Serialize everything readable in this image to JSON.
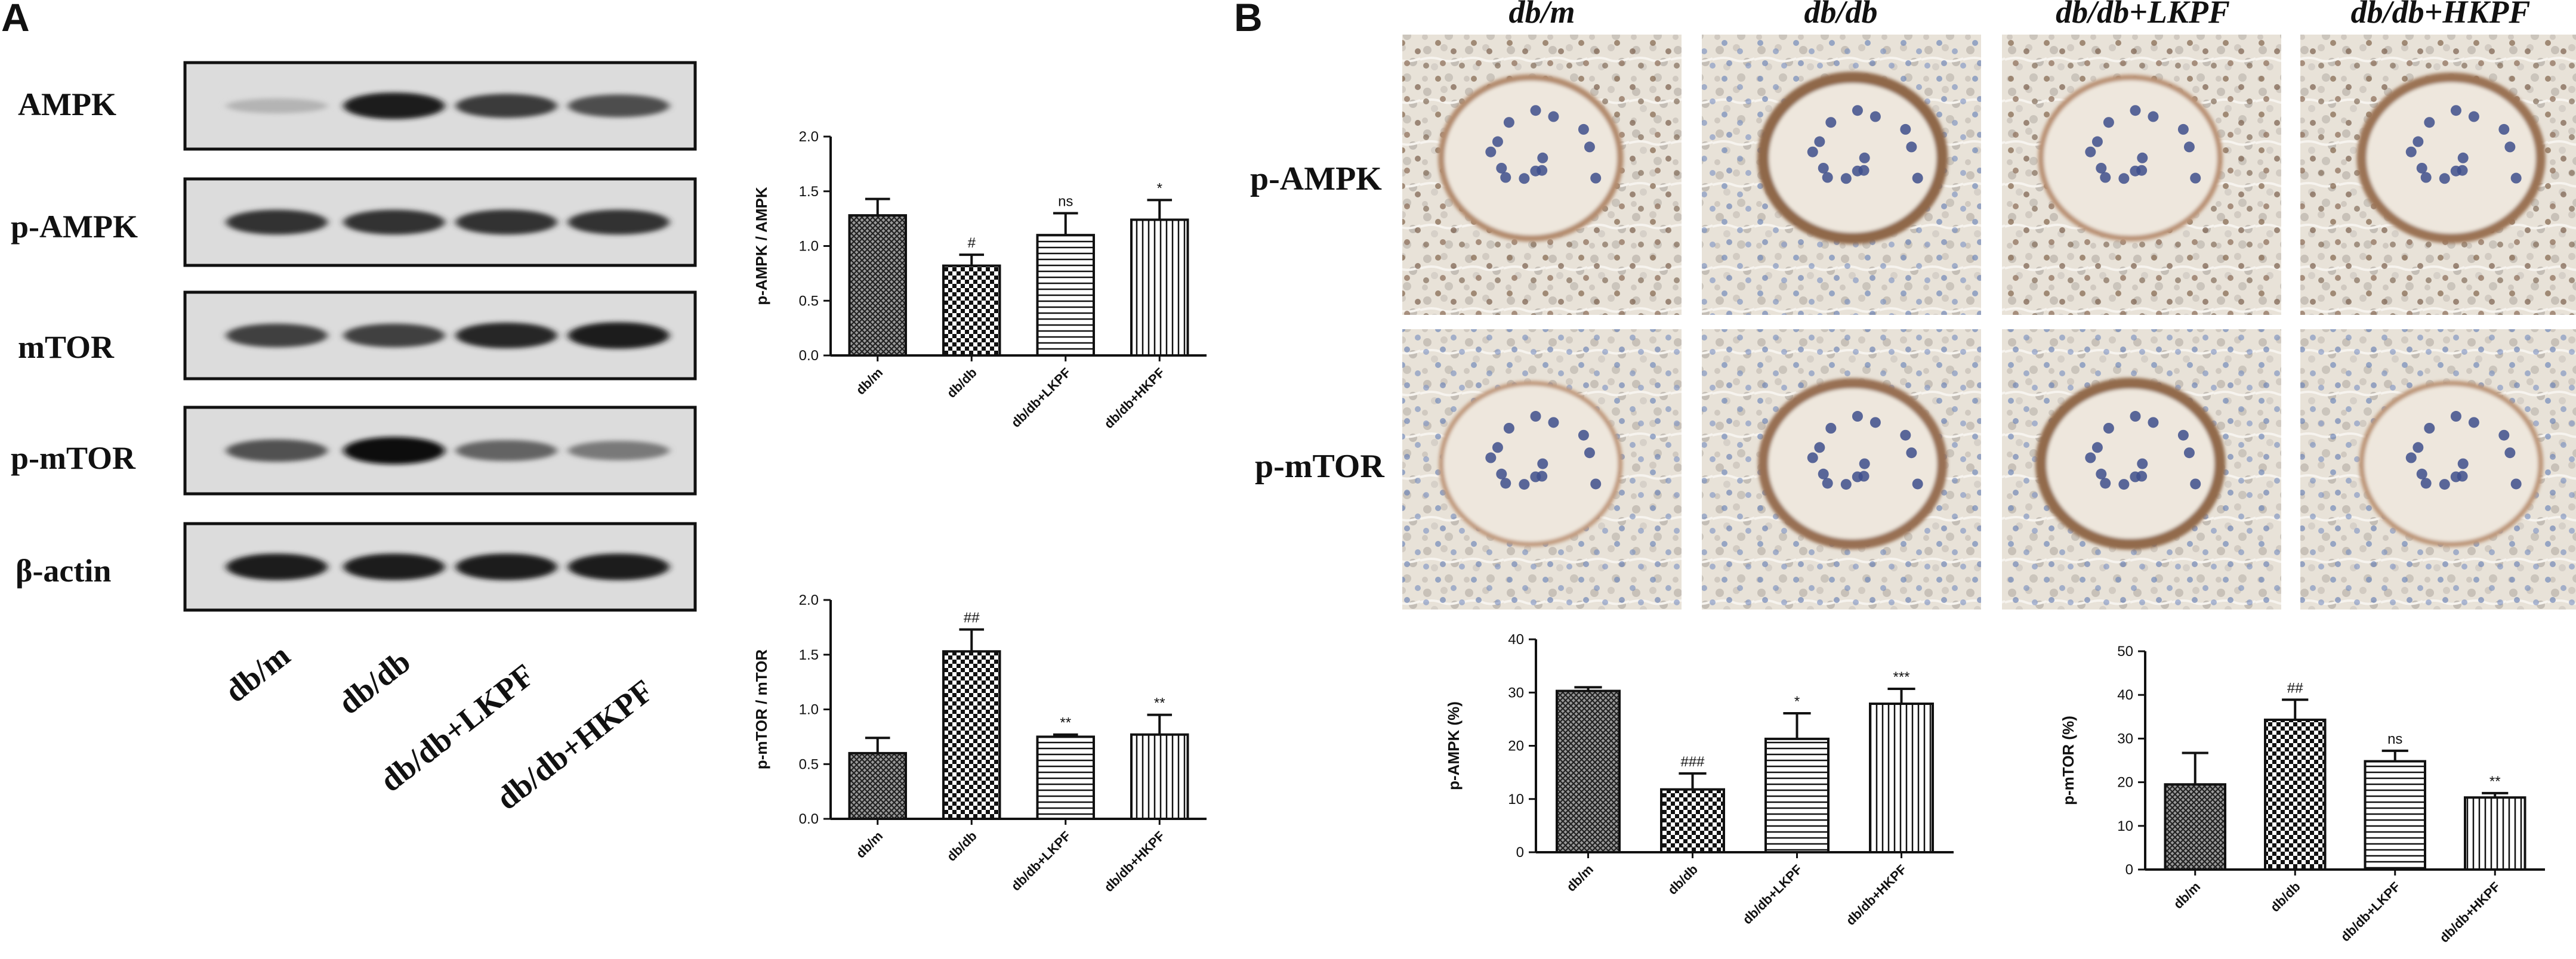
{
  "panels": [
    {
      "letter": "A"
    },
    {
      "letter": "B"
    }
  ],
  "blot": {
    "rows": [
      {
        "label": "AMPK"
      },
      {
        "label": "p-AMPK"
      },
      {
        "label": "mTOR"
      },
      {
        "label": "p-mTOR"
      },
      {
        "label": "β-actin"
      }
    ],
    "lanes": [
      "db/m",
      "db/db",
      "db/db+LKPF",
      "db/db+HKPF"
    ],
    "band_intensity": [
      [
        0.25,
        0.95,
        0.8,
        0.72
      ],
      [
        0.85,
        0.85,
        0.85,
        0.85
      ],
      [
        0.78,
        0.78,
        0.9,
        0.95
      ],
      [
        0.7,
        1.0,
        0.62,
        0.52
      ],
      [
        0.95,
        0.95,
        0.95,
        0.95
      ]
    ]
  },
  "ihc": {
    "groups": [
      "db/m",
      "db/db",
      "db/db+LKPF",
      "db/db+HKPF"
    ],
    "rows": [
      "p-AMPK",
      "p-mTOR"
    ]
  },
  "chart_data": [
    {
      "type": "bar",
      "categories": [
        "db/m",
        "db/db",
        "db/db+LKPF",
        "db/db+HKPF"
      ],
      "values": [
        1.28,
        0.82,
        1.1,
        1.24
      ],
      "errors": [
        0.15,
        0.1,
        0.2,
        0.18
      ],
      "annotations": [
        "",
        "#",
        "ns",
        "*"
      ],
      "ylabel": "p-AMPK / AMPK",
      "xlabel": "",
      "title": "",
      "ylim": [
        0,
        2.0
      ],
      "yticks": [
        "0.0",
        "0.5",
        "1.0",
        "1.5",
        "2.0"
      ],
      "patterns": [
        "dense-crosshatch",
        "checker",
        "horizontal",
        "vertical"
      ]
    },
    {
      "type": "bar",
      "categories": [
        "db/m",
        "db/db",
        "db/db+LKPF",
        "db/db+HKPF"
      ],
      "values": [
        0.6,
        1.53,
        0.75,
        0.77
      ],
      "errors": [
        0.14,
        0.2,
        0.02,
        0.18
      ],
      "annotations": [
        "",
        "##",
        "**",
        "**"
      ],
      "ylabel": "p-mTOR / mTOR",
      "xlabel": "",
      "title": "",
      "ylim": [
        0,
        2.0
      ],
      "yticks": [
        "0.0",
        "0.5",
        "1.0",
        "1.5",
        "2.0"
      ],
      "patterns": [
        "dense-crosshatch",
        "checker",
        "horizontal",
        "vertical"
      ]
    },
    {
      "type": "bar",
      "categories": [
        "db/m",
        "db/db",
        "db/db+LKPF",
        "db/db+HKPF"
      ],
      "values": [
        30.3,
        11.8,
        21.3,
        27.9
      ],
      "errors": [
        0.7,
        3.0,
        4.8,
        2.8
      ],
      "annotations": [
        "",
        "###",
        "*",
        "***"
      ],
      "ylabel": "p-AMPK (%)",
      "xlabel": "",
      "title": "",
      "ylim": [
        0,
        40
      ],
      "yticks": [
        "0",
        "10",
        "20",
        "30",
        "40"
      ],
      "patterns": [
        "dense-crosshatch",
        "checker",
        "horizontal",
        "vertical"
      ]
    },
    {
      "type": "bar",
      "categories": [
        "db/m",
        "db/db",
        "db/db+LKPF",
        "db/db+HKPF"
      ],
      "values": [
        19.5,
        34.3,
        24.8,
        16.5
      ],
      "errors": [
        7.2,
        4.6,
        2.4,
        1.0
      ],
      "annotations": [
        "",
        "##",
        "ns",
        "**"
      ],
      "ylabel": "p-mTOR (%)",
      "xlabel": "",
      "title": "",
      "ylim": [
        0,
        50
      ],
      "yticks": [
        "0",
        "10",
        "20",
        "30",
        "40",
        "50"
      ],
      "patterns": [
        "dense-crosshatch",
        "checker",
        "horizontal",
        "vertical"
      ]
    }
  ]
}
